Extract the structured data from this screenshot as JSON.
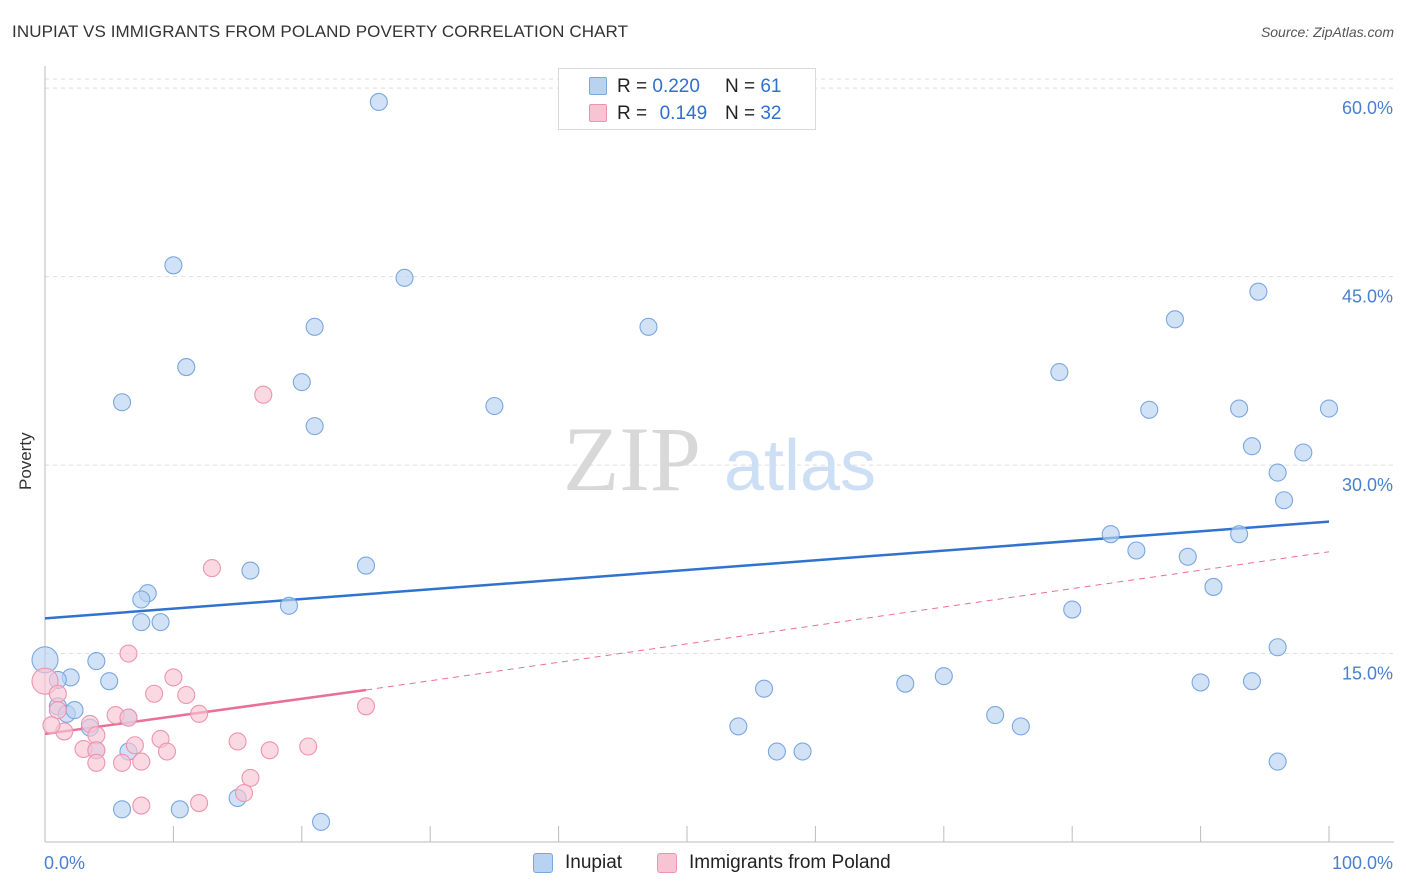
{
  "title": "INUPIAT VS IMMIGRANTS FROM POLAND POVERTY CORRELATION CHART",
  "source": "Source: ZipAtlas.com",
  "watermark": {
    "zip": "ZIP",
    "atlas": "atlas"
  },
  "legend_top": [
    {
      "r_label": "R =",
      "r_value": "0.220",
      "n_label": "N =",
      "n_value": "61"
    },
    {
      "r_label": "R =",
      "r_value": "0.149",
      "n_label": "N =",
      "n_value": "32"
    }
  ],
  "legend_bottom": [
    "Inupiat",
    "Immigrants from Poland"
  ],
  "colors": {
    "inupiat_fill": "#b8d2f2",
    "inupiat_stroke": "#7aa7e0",
    "inupiat_line": "#2f73cf",
    "poland_fill": "#f8c4d4",
    "poland_stroke": "#ee94b0",
    "poland_line": "#e8709a",
    "axis_text": "#4a7fd0",
    "grid": "#dddddd"
  },
  "chart_data": {
    "type": "scatter",
    "title": "INUPIAT VS IMMIGRANTS FROM POLAND POVERTY CORRELATION CHART",
    "xlabel": "",
    "ylabel": "Poverty",
    "xlim": [
      0,
      100
    ],
    "ylim": [
      0,
      62
    ],
    "x_tick_labels": [
      "0.0%",
      "100.0%"
    ],
    "y_ticks": [
      15,
      30,
      45,
      60
    ],
    "y_tick_labels": [
      "15.0%",
      "30.0%",
      "45.0%",
      "60.0%"
    ],
    "grid": "horizontal dashed",
    "legend_placement": "top-center and bottom",
    "series": [
      {
        "name": "Inupiat",
        "points": [
          [
            26,
            58.9
          ],
          [
            10,
            45.9
          ],
          [
            28,
            44.9
          ],
          [
            94.5,
            43.8
          ],
          [
            21,
            41
          ],
          [
            47,
            41
          ],
          [
            88,
            41.6
          ],
          [
            11,
            37.8
          ],
          [
            20,
            36.6
          ],
          [
            79,
            37.4
          ],
          [
            6,
            35
          ],
          [
            35,
            34.7
          ],
          [
            86,
            34.4
          ],
          [
            93,
            34.5
          ],
          [
            100,
            34.5
          ],
          [
            21,
            33.1
          ],
          [
            94,
            31.5
          ],
          [
            98,
            31
          ],
          [
            96,
            29.4
          ],
          [
            96.5,
            27.2
          ],
          [
            83,
            24.5
          ],
          [
            93,
            24.5
          ],
          [
            85,
            23.2
          ],
          [
            89,
            22.7
          ],
          [
            25,
            22
          ],
          [
            16,
            21.6
          ],
          [
            91,
            20.3
          ],
          [
            8,
            19.8
          ],
          [
            7.5,
            19.3
          ],
          [
            19,
            18.8
          ],
          [
            80,
            18.5
          ],
          [
            7.5,
            17.5
          ],
          [
            9,
            17.5
          ],
          [
            0,
            14.5
          ],
          [
            96,
            15.5
          ],
          [
            4,
            14.4
          ],
          [
            2,
            13.1
          ],
          [
            5,
            12.8
          ],
          [
            70,
            13.2
          ],
          [
            67,
            12.6
          ],
          [
            90,
            12.7
          ],
          [
            94,
            12.8
          ],
          [
            1,
            12.9
          ],
          [
            1,
            10.8
          ],
          [
            1.7,
            10.2
          ],
          [
            2.3,
            10.5
          ],
          [
            6.5,
            9.9
          ],
          [
            3.5,
            9.1
          ],
          [
            56,
            12.2
          ],
          [
            74,
            10.1
          ],
          [
            76,
            9.2
          ],
          [
            54,
            9.2
          ],
          [
            4,
            7.3
          ],
          [
            6.5,
            7.2
          ],
          [
            57,
            7.2
          ],
          [
            59,
            7.2
          ],
          [
            96,
            6.4
          ],
          [
            15,
            3.5
          ],
          [
            6,
            2.6
          ],
          [
            10.5,
            2.6
          ],
          [
            21.5,
            1.6
          ]
        ]
      },
      {
        "name": "Immigrants from Poland",
        "points": [
          [
            17,
            35.6
          ],
          [
            13,
            21.8
          ],
          [
            6.5,
            15
          ],
          [
            0,
            12.8
          ],
          [
            1,
            11.8
          ],
          [
            8.5,
            11.8
          ],
          [
            10,
            13.1
          ],
          [
            11,
            11.7
          ],
          [
            1,
            10.5
          ],
          [
            12,
            10.2
          ],
          [
            25,
            10.8
          ],
          [
            3.5,
            9.4
          ],
          [
            5.5,
            10.1
          ],
          [
            6.5,
            9.9
          ],
          [
            4,
            8.5
          ],
          [
            9,
            8.2
          ],
          [
            7,
            7.7
          ],
          [
            15,
            8
          ],
          [
            3,
            7.4
          ],
          [
            4,
            7.3
          ],
          [
            9.5,
            7.2
          ],
          [
            17.5,
            7.3
          ],
          [
            20.5,
            7.6
          ],
          [
            4,
            6.3
          ],
          [
            6,
            6.3
          ],
          [
            7.5,
            6.4
          ],
          [
            16,
            5.1
          ],
          [
            15.5,
            3.9
          ],
          [
            7.5,
            2.9
          ],
          [
            12,
            3.1
          ],
          [
            1.5,
            8.8
          ],
          [
            0.5,
            9.3
          ]
        ]
      }
    ],
    "trendlines": [
      {
        "series": "Inupiat",
        "x": [
          0,
          100
        ],
        "y": [
          17.8,
          25.5
        ],
        "style": "solid"
      },
      {
        "series": "Immigrants from Poland",
        "x": [
          0,
          25
        ],
        "y": [
          8.6,
          12.1
        ],
        "style": "solid"
      },
      {
        "series": "Immigrants from Poland",
        "x": [
          25,
          100
        ],
        "y": [
          12.1,
          23.1
        ],
        "style": "dashed"
      }
    ],
    "annotations": [
      {
        "series": "Inupiat",
        "R": 0.22,
        "N": 61
      },
      {
        "series": "Immigrants from Poland",
        "R": 0.149,
        "N": 32
      }
    ]
  }
}
